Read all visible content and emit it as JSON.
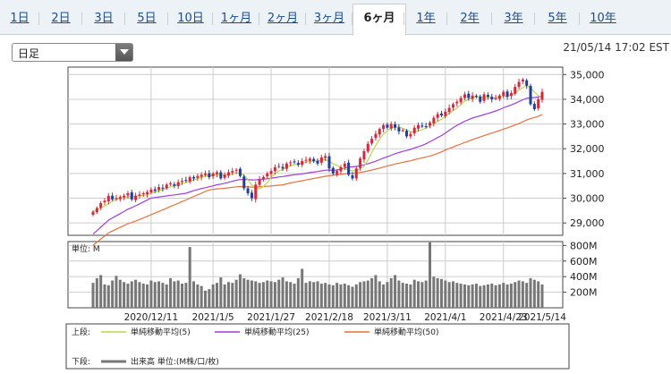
{
  "tabs": [
    {
      "label": "1日",
      "active": false
    },
    {
      "label": "2日",
      "active": false
    },
    {
      "label": "3日",
      "active": false
    },
    {
      "label": "5日",
      "active": false
    },
    {
      "label": "10日",
      "active": false
    },
    {
      "label": "1ヶ月",
      "active": false
    },
    {
      "label": "2ヶ月",
      "active": false
    },
    {
      "label": "3ヶ月",
      "active": false
    },
    {
      "label": "6ヶ月",
      "active": true
    },
    {
      "label": "1年",
      "active": false
    },
    {
      "label": "2年",
      "active": false
    },
    {
      "label": "3年",
      "active": false
    },
    {
      "label": "5年",
      "active": false
    },
    {
      "label": "10年",
      "active": false
    }
  ],
  "period_select": {
    "value": "日足"
  },
  "timestamp": "21/05/14 17:02 EST",
  "colors": {
    "up": "#d9263a",
    "down": "#1f3f99",
    "ma5": "#b9d651",
    "ma25": "#9b3fd8",
    "ma50": "#e8703a",
    "volume": "#777777",
    "grid": "#cccccc"
  },
  "chart_data": [
    {
      "type": "candlestick",
      "ylim": [
        28500,
        35300
      ],
      "yticks": [
        "35,000",
        "34,000",
        "33,000",
        "32,000",
        "31,000",
        "30,000",
        "29,000"
      ],
      "ytick_values": [
        35000,
        34000,
        33000,
        32000,
        31000,
        30000,
        29000
      ],
      "x_labels": [
        "2020/12/11",
        "2021/1/5",
        "2021/1/27",
        "2021/2/18",
        "2021/3/11",
        "2021/4/1",
        "2021/4/23",
        "2021/5/14"
      ],
      "close": [
        29450,
        29600,
        29800,
        29900,
        30100,
        29950,
        30000,
        30050,
        30100,
        30200,
        29950,
        30100,
        30150,
        30200,
        30250,
        30350,
        30300,
        30450,
        30400,
        30550,
        30600,
        30500,
        30650,
        30700,
        30700,
        30850,
        30800,
        30900,
        30950,
        31000,
        30850,
        31000,
        31050,
        30800,
        30950,
        31050,
        31100,
        31150,
        30900,
        30400,
        30200,
        30000,
        30550,
        30750,
        30850,
        31000,
        31100,
        31250,
        31300,
        31200,
        31400,
        31450,
        31450,
        31350,
        31500,
        31550,
        31600,
        31500,
        31400,
        31650,
        31700,
        31200,
        31000,
        31100,
        31250,
        31400,
        30950,
        30800,
        31200,
        31600,
        31900,
        32200,
        32400,
        32600,
        32800,
        32950,
        32850,
        33000,
        32850,
        32700,
        32750,
        32500,
        32600,
        32850,
        32950,
        32900,
        32900,
        33050,
        33250,
        33400,
        33350,
        33500,
        33650,
        33800,
        33900,
        34050,
        34200,
        34050,
        34150,
        34100,
        33900,
        34200,
        34100,
        34000,
        34050,
        34150,
        34300,
        34100,
        34250,
        34500,
        34700,
        34800,
        34550,
        33800,
        33600,
        34000,
        34300
      ],
      "ma_labels": [
        "単純移動平均(5)",
        "単純移動平均(25)",
        "単純移動平均(50)"
      ],
      "legend_prefix_upper": "上段:"
    },
    {
      "type": "bar",
      "unit_label": "単位: M",
      "ylim": [
        0,
        850
      ],
      "yticks": [
        "800M",
        "600M",
        "400M",
        "200M"
      ],
      "ytick_values": [
        800,
        600,
        400,
        200
      ],
      "values": [
        320,
        380,
        420,
        300,
        290,
        350,
        410,
        360,
        330,
        310,
        340,
        360,
        330,
        310,
        300,
        350,
        330,
        340,
        320,
        300,
        380,
        340,
        350,
        310,
        320,
        780,
        340,
        300,
        280,
        220,
        240,
        300,
        320,
        390,
        300,
        330,
        320,
        360,
        430,
        380,
        360,
        350,
        340,
        320,
        330,
        350,
        340,
        330,
        360,
        390,
        340,
        330,
        310,
        380,
        500,
        320,
        340,
        330,
        340,
        310,
        320,
        300,
        290,
        320,
        300,
        310,
        290,
        270,
        300,
        330,
        340,
        350,
        380,
        420,
        340,
        300,
        330,
        380,
        420,
        350,
        320,
        310,
        300,
        360,
        340,
        330,
        350,
        840,
        400,
        380,
        370,
        350,
        330,
        340,
        320,
        310,
        300,
        290,
        300,
        310,
        280,
        290,
        300,
        310,
        290,
        300,
        320,
        300,
        310,
        330,
        350,
        340,
        320,
        380,
        360,
        340,
        300
      ],
      "legend_prefix_lower": "下段:",
      "series_label": "出来高 単位:(M株/口/枚)"
    }
  ]
}
